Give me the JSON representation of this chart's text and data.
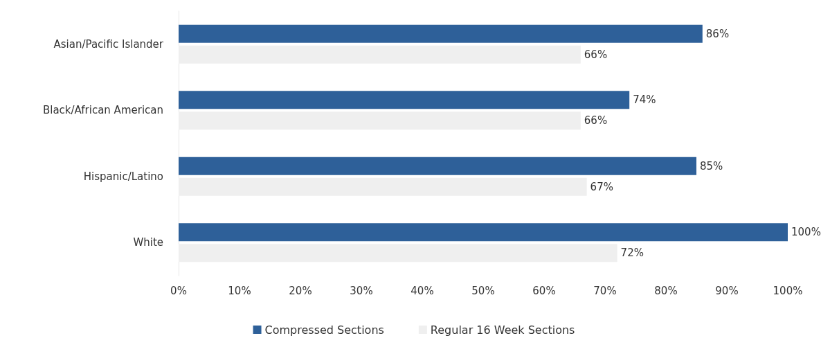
{
  "chart_data": {
    "type": "bar",
    "orientation": "horizontal",
    "categories": [
      "Asian/Pacific Islander",
      "Black/African American",
      "Hispanic/Latino",
      "White"
    ],
    "series": [
      {
        "name": "Compressed Sections",
        "color": "#2e6099",
        "values": [
          86,
          74,
          85,
          100
        ],
        "value_labels": [
          "86%",
          "74%",
          "85%",
          "100%"
        ]
      },
      {
        "name": "Regular 16 Week Sections",
        "color": "#efefef",
        "values": [
          66,
          66,
          67,
          72
        ],
        "value_labels": [
          "66%",
          "66%",
          "67%",
          "72%"
        ]
      }
    ],
    "xlim": [
      0,
      100
    ],
    "xticks": [
      {
        "value": 0,
        "label": "0%"
      },
      {
        "value": 10,
        "label": "10%"
      },
      {
        "value": 20,
        "label": "20%"
      },
      {
        "value": 30,
        "label": "30%"
      },
      {
        "value": 40,
        "label": "40%"
      },
      {
        "value": 50,
        "label": "50%"
      },
      {
        "value": 60,
        "label": "60%"
      },
      {
        "value": 70,
        "label": "70%"
      },
      {
        "value": 80,
        "label": "80%"
      },
      {
        "value": 90,
        "label": "90%"
      },
      {
        "value": 100,
        "label": "100%"
      }
    ],
    "grid": false,
    "legend": "bottom"
  }
}
